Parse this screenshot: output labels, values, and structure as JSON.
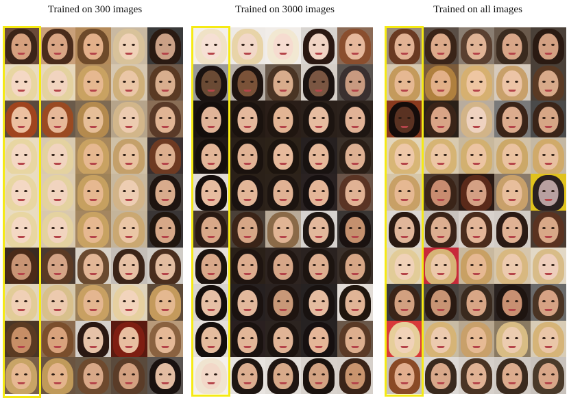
{
  "panels": [
    {
      "title": "Trained on 300 images"
    },
    {
      "title": "Trained on 3000 images"
    },
    {
      "title": "Trained on all images"
    }
  ],
  "colors": {
    "highlight": "#f5ea14",
    "title_text": "#111111"
  },
  "palettes": [
    [
      [
        [
          "#3b2418",
          "#d6a07e",
          "#6a4a3a"
        ],
        [
          "#4a2c1c",
          "#d9a584",
          "#c9a07a"
        ],
        [
          "#6e4a2a",
          "#e3b08a",
          "#b48a5a"
        ],
        [
          "#d8c29a",
          "#f0d2b8",
          "#c9b9a2"
        ],
        [
          "#2a1a12",
          "#caa086",
          "#3a3a3a"
        ]
      ],
      [
        [
          "#e8d6a2",
          "#f4d8c4",
          "#e9dcc0"
        ],
        [
          "#e4d2a0",
          "#f1d4bf",
          "#e7d8bb"
        ],
        [
          "#c9a262",
          "#e6b890",
          "#b08c5e"
        ],
        [
          "#cfb07a",
          "#eac6a6",
          "#d6c7b1"
        ],
        [
          "#5a3a24",
          "#d8ae8e",
          "#6e5a4a"
        ]
      ],
      [
        [
          "#a0441e",
          "#ecc0a0",
          "#5a4a3e"
        ],
        [
          "#9a4a22",
          "#e6b898",
          "#6a5a4a"
        ],
        [
          "#b48a4e",
          "#e6be98",
          "#7e6a52"
        ],
        [
          "#d2b68a",
          "#eccbb0",
          "#b6a48a"
        ],
        [
          "#5a3a28",
          "#e0b494",
          "#8a6e56"
        ]
      ],
      [
        [
          "#e8d6a2",
          "#f4d8c4",
          "#e9dcc0"
        ],
        [
          "#e4d2a0",
          "#f1d4bf",
          "#d9cab0"
        ],
        [
          "#c9a262",
          "#e6b890",
          "#a8885c"
        ],
        [
          "#c4a06a",
          "#e9c2a0",
          "#cfc0a6"
        ],
        [
          "#6e3a22",
          "#dcae8e",
          "#3a3030"
        ]
      ],
      [
        [
          "#e8d6a2",
          "#f4d8c4",
          "#e9dcc0"
        ],
        [
          "#e4d2a0",
          "#f1d4bf",
          "#dcccb2"
        ],
        [
          "#c6a060",
          "#e6b890",
          "#9e8258"
        ],
        [
          "#d2b488",
          "#edcdb2",
          "#c8b89e"
        ],
        [
          "#1e1410",
          "#d8ab8c",
          "#4a4440"
        ]
      ],
      [
        [
          "#e8d6a2",
          "#f4d8c4",
          "#e9dcc0"
        ],
        [
          "#e4d2a0",
          "#f1d4bf",
          "#d8c8ae"
        ],
        [
          "#c8a262",
          "#e6b890",
          "#a48660"
        ],
        [
          "#caa872",
          "#eac6a6",
          "#c4b49a"
        ],
        [
          "#20160f",
          "#d6a888",
          "#3a3636"
        ]
      ],
      [
        [
          "#4a2a18",
          "#c89474",
          "#3a2a22"
        ],
        [
          "#5a3a24",
          "#d4a486",
          "#4a3a30"
        ],
        [
          "#6a4a30",
          "#e2b696",
          "#d8d2c8"
        ],
        [
          "#3a2418",
          "#e6c0a4",
          "#c4beb8"
        ],
        [
          "#4a2e1e",
          "#e2bca0",
          "#d0ccc6"
        ]
      ],
      [
        [
          "#e2cc98",
          "#f0d0b6",
          "#e2d6bc"
        ],
        [
          "#d8c08c",
          "#eccaae",
          "#d6c8ac"
        ],
        [
          "#c8a062",
          "#e4b690",
          "#9a7e58"
        ],
        [
          "#e6d0a0",
          "#f2d4bc",
          "#dfd3bb"
        ],
        [
          "#c49a5c",
          "#e4b890",
          "#5e4a38"
        ]
      ],
      [
        [
          "#5a3a22",
          "#c68e66",
          "#4a3626"
        ],
        [
          "#7a4e2c",
          "#d8a27c",
          "#8a6a4e"
        ],
        [
          "#2a1812",
          "#e6c2a8",
          "#d4cfca"
        ],
        [
          "#7e1e12",
          "#e8bea0",
          "#5a1a10"
        ],
        [
          "#8a6240",
          "#e4b896",
          "#b89a7a"
        ]
      ],
      [
        [
          "#c8a466",
          "#e6b892",
          "#7a6048"
        ],
        [
          "#c09a5a",
          "#e4b48c",
          "#6a5440"
        ],
        [
          "#6e4a2e",
          "#d8a888",
          "#6a5a48"
        ],
        [
          "#5a3c28",
          "#d2a080",
          "#5a4a3c"
        ],
        [
          "#1a1210",
          "#e2bca2",
          "#5a5450"
        ]
      ]
    ],
    [
      [
        [
          "#f0e2c6",
          "#f6e0d4",
          "#f4efea"
        ],
        [
          "#e8d4a8",
          "#f2d8c8",
          "#eeeae6"
        ],
        [
          "#f2e8d2",
          "#f6dcd0",
          "#f1ede9"
        ],
        [
          "#2a1812",
          "#f0d4c4",
          "#d8d4d0"
        ],
        [
          "#8a4e2e",
          "#e6b89c",
          "#8a6a56"
        ]
      ],
      [
        [
          "#1a1210",
          "#6a4a34",
          "#9a9a9a"
        ],
        [
          "#1e1410",
          "#7a5238",
          "#b8b0a8"
        ],
        [
          "#4a3424",
          "#d8ac8c",
          "#6a5a4c"
        ],
        [
          "#1a1210",
          "#7a5642",
          "#d6cfc8"
        ],
        [
          "#3a3030",
          "#c89a80",
          "#5a5450"
        ]
      ],
      [
        [
          "#140e0c",
          "#e0b498",
          "#1a1412"
        ],
        [
          "#1a120e",
          "#e4b89c",
          "#241a14"
        ],
        [
          "#201610",
          "#e2b494",
          "#2a1e18"
        ],
        [
          "#1c1410",
          "#e6bca0",
          "#2a201a"
        ],
        [
          "#1e1612",
          "#e0b296",
          "#2c221c"
        ]
      ],
      [
        [
          "#16100c",
          "#e2b698",
          "#221a16"
        ],
        [
          "#1a120e",
          "#e0b294",
          "#2a2018"
        ],
        [
          "#1c140e",
          "#e6ba9c",
          "#2c2218"
        ],
        [
          "#181210",
          "#e4b89a",
          "#262020"
        ],
        [
          "#2a1e16",
          "#ddb092",
          "#3a3028"
        ]
      ],
      [
        [
          "#140e0c",
          "#e6bca0",
          "#e2dcd6"
        ],
        [
          "#1a1210",
          "#e2b698",
          "#2a2018"
        ],
        [
          "#1c1410",
          "#e0b294",
          "#2c221a"
        ],
        [
          "#161010",
          "#e4b698",
          "#2a2222"
        ],
        [
          "#5a3424",
          "#e0b294",
          "#6a5448"
        ]
      ],
      [
        [
          "#2a1a12",
          "#d8a888",
          "#4a3a30"
        ],
        [
          "#3a2418",
          "#d6a686",
          "#4a4038"
        ],
        [
          "#8a6a48",
          "#e0b494",
          "#b8aa98"
        ],
        [
          "#1e1612",
          "#e2b89c",
          "#d6d2ce"
        ],
        [
          "#1a1210",
          "#c4906e",
          "#3a3634"
        ]
      ],
      [
        [
          "#1a120e",
          "#d8a88a",
          "#e6e0da"
        ],
        [
          "#1e1410",
          "#dcac8e",
          "#2a2018"
        ],
        [
          "#201612",
          "#d6a688",
          "#2e2420"
        ],
        [
          "#1c1410",
          "#dcae90",
          "#2a2220"
        ],
        [
          "#2a1e16",
          "#d6a686",
          "#3a302a"
        ]
      ],
      [
        [
          "#140e0c",
          "#e6c0a6",
          "#d8d4d0"
        ],
        [
          "#1a1210",
          "#e2b89c",
          "#262020"
        ],
        [
          "#1e1410",
          "#c89878",
          "#2a2220"
        ],
        [
          "#181210",
          "#e4bca0",
          "#262222"
        ],
        [
          "#20160e",
          "#e0b496",
          "#e2dcd6"
        ]
      ],
      [
        [
          "#140e0c",
          "#e4bc9e",
          "#e4dfda"
        ],
        [
          "#1a1210",
          "#e2b698",
          "#2a2020"
        ],
        [
          "#1c1410",
          "#e0b496",
          "#2c2420"
        ],
        [
          "#161010",
          "#e4b698",
          "#262222"
        ],
        [
          "#5a3a26",
          "#dcae8e",
          "#6a584a"
        ]
      ],
      [
        [
          "#f0e4d0",
          "#f2d8c8",
          "#f4f0ec"
        ],
        [
          "#1e1612",
          "#dcae90",
          "#e8e4e0"
        ],
        [
          "#201612",
          "#d8aa8a",
          "#e2ded9"
        ],
        [
          "#1a120e",
          "#d2a282",
          "#d8d2cc"
        ],
        [
          "#3a2418",
          "#c8946e",
          "#d6d0ca"
        ]
      ]
    ],
    [
      [
        [
          "#6a3a22",
          "#e2b294",
          "#9a8a7a"
        ],
        [
          "#3a2418",
          "#dcaa8a",
          "#5a4e46"
        ],
        [
          "#5a4030",
          "#e0b496",
          "#8a7e72"
        ],
        [
          "#3a2a1e",
          "#d8a688",
          "#6a5a4c"
        ],
        [
          "#2a1a12",
          "#d2a082",
          "#4a4038"
        ]
      ],
      [
        [
          "#c49a5c",
          "#e6b892",
          "#d6c8b0"
        ],
        [
          "#b0803e",
          "#e2b088",
          "#7a5a3a"
        ],
        [
          "#d6b070",
          "#eec6a2",
          "#c8b290"
        ],
        [
          "#c8a06a",
          "#ecc4a6",
          "#d6cabc"
        ],
        [
          "#5a3a24",
          "#d8aa8a",
          "#4a4038"
        ]
      ],
      [
        [
          "#140c0a",
          "#5a3222",
          "#8a3a1e"
        ],
        [
          "#3a2418",
          "#d8a486",
          "#2a2018"
        ],
        [
          "#d2b488",
          "#eed2c0",
          "#b8ac9e"
        ],
        [
          "#3a2418",
          "#dcac8e",
          "#7a7a7a"
        ],
        [
          "#3a2418",
          "#d6a686",
          "#4a4a4a"
        ]
      ],
      [
        [
          "#d8b676",
          "#eec8a8",
          "#e2d6bc"
        ],
        [
          "#d6b474",
          "#ecc6a4",
          "#d8cab0"
        ],
        [
          "#d2b070",
          "#ecc4a2",
          "#c8b89c"
        ],
        [
          "#cca868",
          "#eac2a0",
          "#d2c2a8"
        ],
        [
          "#d0aa6a",
          "#e8c0a0",
          "#c4b8a4"
        ]
      ],
      [
        [
          "#c8a066",
          "#e6b892",
          "#d6c6a8"
        ],
        [
          "#3a2418",
          "#c88c70",
          "#4a3a30"
        ],
        [
          "#5a2a1a",
          "#d4a084",
          "#2a1a14"
        ],
        [
          "#c8a06a",
          "#e8be9c",
          "#8a7a6a"
        ],
        [
          "#2a2020",
          "#b8a0a0",
          "#e0c21c"
        ]
      ],
      [
        [
          "#2a1a12",
          "#e0b69a",
          "#dcd8d4"
        ],
        [
          "#3a2418",
          "#dcae90",
          "#c8c2bc"
        ],
        [
          "#4a2c1c",
          "#e2b698",
          "#d8d2cc"
        ],
        [
          "#2a1a14",
          "#e0b294",
          "#d2ccc6"
        ],
        [
          "#5a3220",
          "#d8a888",
          "#4a3a30"
        ]
      ],
      [
        [
          "#e2cc98",
          "#f0d2b8",
          "#e2d6bc"
        ],
        [
          "#d6b476",
          "#ecc8aa",
          "#c82a3a"
        ],
        [
          "#c8a064",
          "#e6b892",
          "#c8b89e"
        ],
        [
          "#d8b880",
          "#eccaae",
          "#d6c6ac"
        ],
        [
          "#d8bc88",
          "#eecebc",
          "#e2d8c6"
        ]
      ],
      [
        [
          "#3a2418",
          "#d2a080",
          "#3a3a3a"
        ],
        [
          "#2a1a12",
          "#c89474",
          "#4a4440"
        ],
        [
          "#3a2a1e",
          "#d8a686",
          "#5a5048"
        ],
        [
          "#1e1410",
          "#c89072",
          "#2a2220"
        ],
        [
          "#4a3424",
          "#d6a284",
          "#6a6a6a"
        ]
      ],
      [
        [
          "#e6ce9a",
          "#f0d2b8",
          "#d83a3a"
        ],
        [
          "#d6b476",
          "#eccaae",
          "#c8bca4"
        ],
        [
          "#c8a06a",
          "#e6ba94",
          "#b8a890"
        ],
        [
          "#d8bc84",
          "#ecccb0",
          "#8a7a62"
        ],
        [
          "#d6b478",
          "#eac6a8",
          "#d8ccb6"
        ]
      ],
      [
        [
          "#8a4a26",
          "#e2ae8e",
          "#c8c2bc"
        ],
        [
          "#3a2a1e",
          "#d8a88a",
          "#dedad6"
        ],
        [
          "#4a3424",
          "#e0b294",
          "#d6d0ca"
        ],
        [
          "#3a2a1e",
          "#dcac8e",
          "#d0cac4"
        ],
        [
          "#4a3a2a",
          "#d8a688",
          "#c8c2bc"
        ]
      ]
    ]
  ]
}
